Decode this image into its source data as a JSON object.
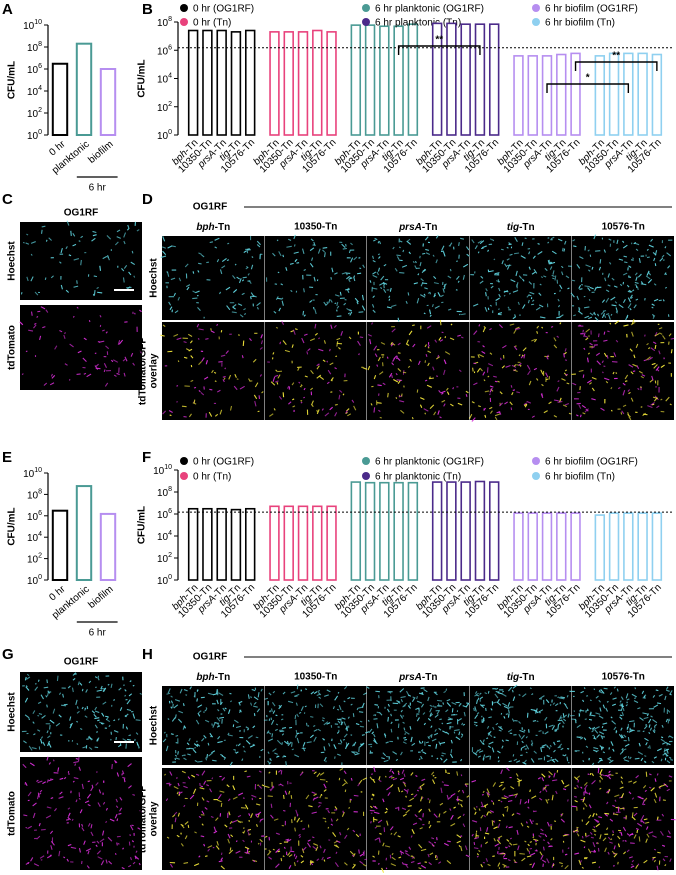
{
  "chart_data": [
    {
      "type": "bar",
      "panel": "A",
      "ylabel": "CFU/mL",
      "log_scale": true,
      "ylim": [
        1,
        10000000000
      ],
      "yticks": [
        {
          "value": 1,
          "label": "10^0"
        },
        {
          "value": 100,
          "label": "10^2"
        },
        {
          "value": 10000,
          "label": "10^4"
        },
        {
          "value": 1000000,
          "label": "10^6"
        },
        {
          "value": 100000000,
          "label": "10^8"
        },
        {
          "value": 10000000000,
          "label": "10^10"
        }
      ],
      "categories": [
        "0 hr",
        "planktonic",
        "biofilm"
      ],
      "values": [
        3000000,
        200000000,
        1000000
      ],
      "colors": [
        "#000000",
        "#4a9a94",
        "#b68ef0"
      ],
      "group_label": "6 hr"
    },
    {
      "type": "grouped_bar",
      "panel": "B",
      "ylabel": "CFU/mL",
      "log_scale": true,
      "ylim": [
        1,
        100000000
      ],
      "yticks": [
        {
          "value": 1,
          "label": "10^0"
        },
        {
          "value": 100,
          "label": "10^2"
        },
        {
          "value": 10000,
          "label": "10^4"
        },
        {
          "value": 1000000,
          "label": "10^6"
        },
        {
          "value": 100000000,
          "label": "10^8"
        }
      ],
      "categories": [
        "bph-Tn",
        "10350-Tn",
        "prsA-Tn",
        "tig-Tn",
        "10576-Tn"
      ],
      "series": [
        {
          "name": "0 hr (OG1RF)",
          "color": "#000000",
          "values": [
            25000000,
            25000000,
            25000000,
            20000000,
            25000000
          ]
        },
        {
          "name": "0 hr (Tn)",
          "color": "#e8427c",
          "values": [
            20000000,
            20000000,
            20000000,
            25000000,
            20000000
          ]
        },
        {
          "name": "6 hr planktonic (OG1RF)",
          "color": "#4a9a94",
          "values": [
            60000000,
            60000000,
            50000000,
            50000000,
            70000000
          ]
        },
        {
          "name": "6 hr planktonic (Tn)",
          "color": "#4b2a8a",
          "values": [
            80000000,
            80000000,
            70000000,
            70000000,
            70000000
          ]
        },
        {
          "name": "6 hr biofilm (OG1RF)",
          "color": "#b68ef0",
          "values": [
            400000,
            400000,
            400000,
            500000,
            600000
          ]
        },
        {
          "name": "6 hr biofilm (Tn)",
          "color": "#8fd0f0",
          "values": [
            400000,
            600000,
            600000,
            600000,
            500000
          ]
        }
      ],
      "reference_line": 1500000,
      "annotations": [
        "**",
        "*",
        "**"
      ]
    },
    {
      "type": "bar",
      "panel": "E",
      "ylabel": "CFU/mL",
      "log_scale": true,
      "ylim": [
        1,
        10000000000
      ],
      "yticks": [
        {
          "value": 1,
          "label": "10^0"
        },
        {
          "value": 100,
          "label": "10^2"
        },
        {
          "value": 10000,
          "label": "10^4"
        },
        {
          "value": 1000000,
          "label": "10^6"
        },
        {
          "value": 100000000,
          "label": "10^8"
        },
        {
          "value": 10000000000,
          "label": "10^10"
        }
      ],
      "categories": [
        "0 hr",
        "planktonic",
        "biofilm"
      ],
      "values": [
        3000000,
        600000000,
        1500000
      ],
      "colors": [
        "#000000",
        "#4a9a94",
        "#b68ef0"
      ],
      "group_label": "6 hr"
    },
    {
      "type": "grouped_bar",
      "panel": "F",
      "ylabel": "CFU/mL",
      "log_scale": true,
      "ylim": [
        1,
        10000000000
      ],
      "yticks": [
        {
          "value": 1,
          "label": "10^0"
        },
        {
          "value": 100,
          "label": "10^2"
        },
        {
          "value": 10000,
          "label": "10^4"
        },
        {
          "value": 1000000,
          "label": "10^6"
        },
        {
          "value": 100000000,
          "label": "10^8"
        },
        {
          "value": 10000000000,
          "label": "10^10"
        }
      ],
      "categories": [
        "bph-Tn",
        "10350-Tn",
        "prsA-Tn",
        "tig-Tn",
        "10576-Tn"
      ],
      "series": [
        {
          "name": "0 hr (OG1RF)",
          "color": "#000000",
          "values": [
            3000000,
            3000000,
            3000000,
            2500000,
            3000000
          ]
        },
        {
          "name": "0 hr (Tn)",
          "color": "#e8427c",
          "values": [
            5000000,
            5000000,
            5000000,
            5000000,
            5000000
          ]
        },
        {
          "name": "6 hr planktonic (OG1RF)",
          "color": "#4a9a94",
          "values": [
            800000000,
            700000000,
            700000000,
            700000000,
            700000000
          ]
        },
        {
          "name": "6 hr planktonic (Tn)",
          "color": "#4b2a8a",
          "values": [
            800000000,
            800000000,
            800000000,
            900000000,
            800000000
          ]
        },
        {
          "name": "6 hr biofilm (OG1RF)",
          "color": "#b68ef0",
          "values": [
            1200000,
            1200000,
            1200000,
            1200000,
            1200000
          ]
        },
        {
          "name": "6 hr biofilm (Tn)",
          "color": "#8fd0f0",
          "values": [
            800000,
            1200000,
            1200000,
            1200000,
            1200000
          ]
        }
      ],
      "reference_line": 1500000
    }
  ],
  "image_panels": [
    {
      "panel": "C",
      "title": "OG1RF",
      "rows": [
        [
          "Hoechst"
        ],
        [
          "tdTomato"
        ]
      ]
    },
    {
      "panel": "D",
      "title": "OG1RF",
      "columns": [
        "bph-Tn",
        "10350-Tn",
        "prsA-Tn",
        "tig-Tn",
        "10576-Tn"
      ],
      "rows": [
        [
          "Hoechst"
        ],
        [
          "tdTomato/GFP",
          "overlay"
        ]
      ]
    },
    {
      "panel": "G",
      "title": "OG1RF",
      "rows": [
        [
          "Hoechst"
        ],
        [
          "tdTomato"
        ]
      ]
    },
    {
      "panel": "H",
      "title": "OG1RF",
      "columns": [
        "bph-Tn",
        "10350-Tn",
        "prsA-Tn",
        "tig-Tn",
        "10576-Tn"
      ],
      "rows": [
        [
          "Hoechst"
        ],
        [
          "tdTomato/GFP",
          "overlay"
        ]
      ]
    }
  ]
}
